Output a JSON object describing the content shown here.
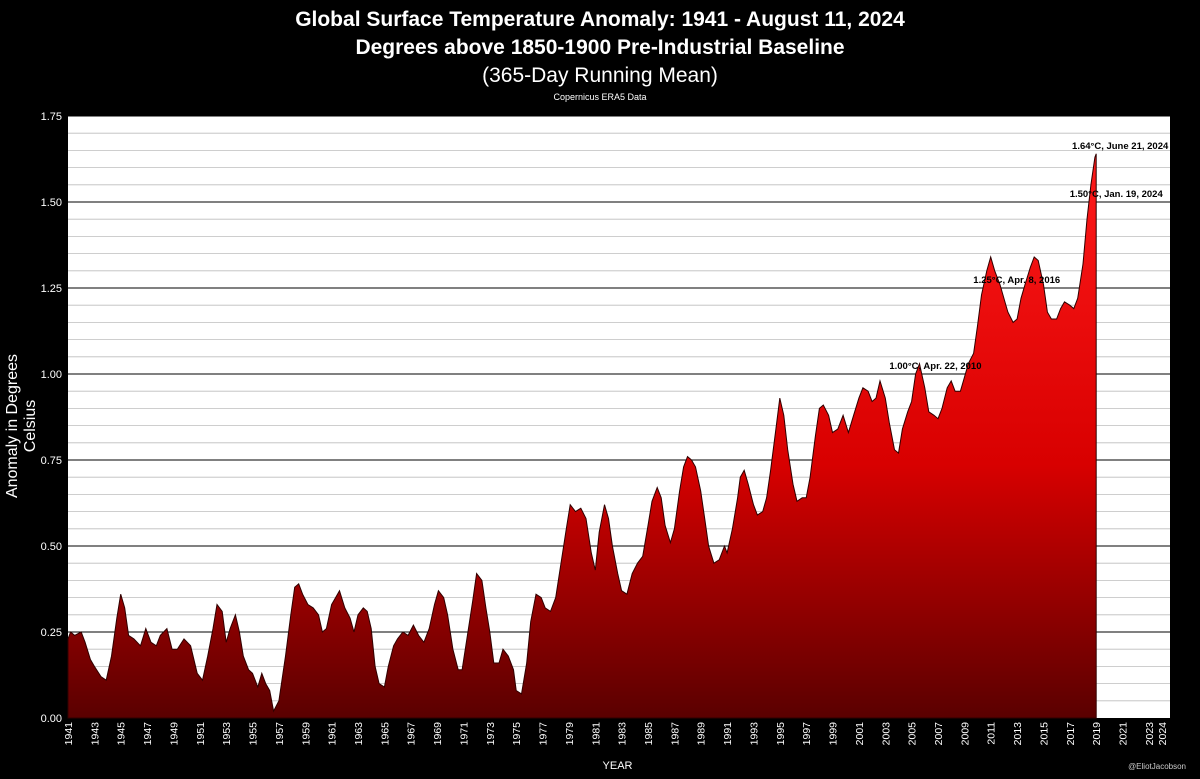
{
  "chart_data": {
    "type": "area",
    "title": "Global Surface Temperature Anomaly: 1941 - August 11, 2024",
    "subtitle": "Degrees above 1850-1900 Pre-Industrial Baseline",
    "subtitle2": "(365-Day Running Mean)",
    "source": "Copernicus ERA5 Data",
    "xlabel": "YEAR",
    "ylabel": "Anomaly in Degrees Celsius",
    "credit": "@EliotJacobson",
    "xlim": [
      1941,
      2024.6
    ],
    "ylim": [
      0,
      1.75
    ],
    "yticks": [
      "0.00",
      "0.25",
      "0.50",
      "0.75",
      "1.00",
      "1.25",
      "1.50",
      "1.75"
    ],
    "xticks": [
      "1941",
      "1943",
      "1945",
      "1947",
      "1949",
      "1951",
      "1953",
      "1955",
      "1957",
      "1959",
      "1961",
      "1963",
      "1965",
      "1967",
      "1969",
      "1971",
      "1973",
      "1975",
      "1977",
      "1979",
      "1981",
      "1983",
      "1985",
      "1987",
      "1989",
      "1991",
      "1993",
      "1995",
      "1997",
      "1999",
      "2001",
      "2003",
      "2005",
      "2007",
      "2009",
      "2011",
      "2013",
      "2015",
      "2017",
      "2019",
      "2021",
      "2023",
      "2024"
    ],
    "grid": true,
    "fill_color": "#e00000",
    "points": [
      [
        1941.0,
        0.23
      ],
      [
        1941.2,
        0.25
      ],
      [
        1941.5,
        0.24
      ],
      [
        1942.0,
        0.25
      ],
      [
        1942.3,
        0.22
      ],
      [
        1942.7,
        0.17
      ],
      [
        1943.0,
        0.15
      ],
      [
        1943.5,
        0.12
      ],
      [
        1943.9,
        0.11
      ],
      [
        1944.3,
        0.18
      ],
      [
        1944.7,
        0.29
      ],
      [
        1945.0,
        0.36
      ],
      [
        1945.3,
        0.32
      ],
      [
        1945.6,
        0.24
      ],
      [
        1946.0,
        0.23
      ],
      [
        1946.5,
        0.21
      ],
      [
        1946.9,
        0.26
      ],
      [
        1947.3,
        0.22
      ],
      [
        1947.7,
        0.21
      ],
      [
        1948.0,
        0.24
      ],
      [
        1948.5,
        0.26
      ],
      [
        1948.9,
        0.2
      ],
      [
        1949.3,
        0.2
      ],
      [
        1949.8,
        0.23
      ],
      [
        1950.3,
        0.21
      ],
      [
        1950.8,
        0.13
      ],
      [
        1951.2,
        0.11
      ],
      [
        1951.6,
        0.18
      ],
      [
        1952.0,
        0.26
      ],
      [
        1952.3,
        0.33
      ],
      [
        1952.7,
        0.31
      ],
      [
        1953.0,
        0.22
      ],
      [
        1953.3,
        0.26
      ],
      [
        1953.7,
        0.3
      ],
      [
        1954.0,
        0.25
      ],
      [
        1954.3,
        0.18
      ],
      [
        1954.7,
        0.14
      ],
      [
        1955.0,
        0.13
      ],
      [
        1955.4,
        0.09
      ],
      [
        1955.7,
        0.13
      ],
      [
        1956.0,
        0.1
      ],
      [
        1956.3,
        0.08
      ],
      [
        1956.6,
        0.02
      ],
      [
        1957.0,
        0.05
      ],
      [
        1957.5,
        0.18
      ],
      [
        1957.9,
        0.3
      ],
      [
        1958.2,
        0.38
      ],
      [
        1958.5,
        0.39
      ],
      [
        1958.8,
        0.36
      ],
      [
        1959.2,
        0.33
      ],
      [
        1959.6,
        0.32
      ],
      [
        1960.0,
        0.3
      ],
      [
        1960.3,
        0.25
      ],
      [
        1960.6,
        0.26
      ],
      [
        1961.0,
        0.33
      ],
      [
        1961.3,
        0.35
      ],
      [
        1961.6,
        0.37
      ],
      [
        1962.0,
        0.32
      ],
      [
        1962.4,
        0.29
      ],
      [
        1962.7,
        0.25
      ],
      [
        1963.0,
        0.3
      ],
      [
        1963.4,
        0.32
      ],
      [
        1963.7,
        0.31
      ],
      [
        1964.0,
        0.26
      ],
      [
        1964.3,
        0.15
      ],
      [
        1964.6,
        0.1
      ],
      [
        1965.0,
        0.09
      ],
      [
        1965.3,
        0.15
      ],
      [
        1965.7,
        0.21
      ],
      [
        1966.0,
        0.23
      ],
      [
        1966.4,
        0.25
      ],
      [
        1966.8,
        0.24
      ],
      [
        1967.2,
        0.27
      ],
      [
        1967.6,
        0.24
      ],
      [
        1968.0,
        0.22
      ],
      [
        1968.4,
        0.26
      ],
      [
        1968.8,
        0.33
      ],
      [
        1969.1,
        0.37
      ],
      [
        1969.5,
        0.35
      ],
      [
        1969.8,
        0.3
      ],
      [
        1970.2,
        0.2
      ],
      [
        1970.6,
        0.14
      ],
      [
        1970.9,
        0.14
      ],
      [
        1971.3,
        0.24
      ],
      [
        1971.7,
        0.34
      ],
      [
        1972.0,
        0.42
      ],
      [
        1972.4,
        0.4
      ],
      [
        1972.7,
        0.32
      ],
      [
        1973.0,
        0.25
      ],
      [
        1973.3,
        0.16
      ],
      [
        1973.7,
        0.16
      ],
      [
        1974.0,
        0.2
      ],
      [
        1974.4,
        0.18
      ],
      [
        1974.8,
        0.14
      ],
      [
        1975.0,
        0.08
      ],
      [
        1975.4,
        0.07
      ],
      [
        1975.8,
        0.16
      ],
      [
        1976.1,
        0.28
      ],
      [
        1976.5,
        0.36
      ],
      [
        1976.9,
        0.35
      ],
      [
        1977.2,
        0.32
      ],
      [
        1977.6,
        0.31
      ],
      [
        1978.0,
        0.35
      ],
      [
        1978.4,
        0.45
      ],
      [
        1978.8,
        0.55
      ],
      [
        1979.1,
        0.62
      ],
      [
        1979.5,
        0.6
      ],
      [
        1979.9,
        0.61
      ],
      [
        1980.3,
        0.58
      ],
      [
        1980.7,
        0.48
      ],
      [
        1981.0,
        0.43
      ],
      [
        1981.3,
        0.54
      ],
      [
        1981.7,
        0.62
      ],
      [
        1982.0,
        0.58
      ],
      [
        1982.3,
        0.5
      ],
      [
        1982.7,
        0.42
      ],
      [
        1983.0,
        0.37
      ],
      [
        1983.4,
        0.36
      ],
      [
        1983.8,
        0.42
      ],
      [
        1984.2,
        0.45
      ],
      [
        1984.6,
        0.47
      ],
      [
        1985.0,
        0.56
      ],
      [
        1985.3,
        0.63
      ],
      [
        1985.7,
        0.67
      ],
      [
        1986.0,
        0.64
      ],
      [
        1986.3,
        0.56
      ],
      [
        1986.7,
        0.51
      ],
      [
        1987.0,
        0.55
      ],
      [
        1987.4,
        0.66
      ],
      [
        1987.7,
        0.73
      ],
      [
        1988.0,
        0.76
      ],
      [
        1988.3,
        0.75
      ],
      [
        1988.6,
        0.73
      ],
      [
        1989.0,
        0.66
      ],
      [
        1989.3,
        0.58
      ],
      [
        1989.6,
        0.5
      ],
      [
        1990.0,
        0.45
      ],
      [
        1990.4,
        0.46
      ],
      [
        1990.8,
        0.5
      ],
      [
        1991.0,
        0.48
      ],
      [
        1991.4,
        0.55
      ],
      [
        1991.8,
        0.64
      ],
      [
        1992.0,
        0.7
      ],
      [
        1992.3,
        0.72
      ],
      [
        1992.6,
        0.68
      ],
      [
        1993.0,
        0.62
      ],
      [
        1993.3,
        0.59
      ],
      [
        1993.7,
        0.6
      ],
      [
        1994.0,
        0.64
      ],
      [
        1994.3,
        0.72
      ],
      [
        1994.7,
        0.84
      ],
      [
        1995.0,
        0.93
      ],
      [
        1995.3,
        0.88
      ],
      [
        1995.6,
        0.78
      ],
      [
        1996.0,
        0.68
      ],
      [
        1996.3,
        0.63
      ],
      [
        1996.7,
        0.64
      ],
      [
        1997.0,
        0.64
      ],
      [
        1997.3,
        0.7
      ],
      [
        1997.7,
        0.82
      ],
      [
        1998.0,
        0.9
      ],
      [
        1998.3,
        0.91
      ],
      [
        1998.7,
        0.88
      ],
      [
        1999.0,
        0.83
      ],
      [
        1999.4,
        0.84
      ],
      [
        1999.8,
        0.88
      ],
      [
        2000.2,
        0.83
      ],
      [
        2000.6,
        0.88
      ],
      [
        2001.0,
        0.93
      ],
      [
        2001.3,
        0.96
      ],
      [
        2001.7,
        0.95
      ],
      [
        2002.0,
        0.92
      ],
      [
        2002.3,
        0.93
      ],
      [
        2002.6,
        0.98
      ],
      [
        2003.0,
        0.93
      ],
      [
        2003.3,
        0.86
      ],
      [
        2003.7,
        0.78
      ],
      [
        2004.0,
        0.77
      ],
      [
        2004.3,
        0.84
      ],
      [
        2004.7,
        0.89
      ],
      [
        2005.0,
        0.92
      ],
      [
        2005.3,
        1.0
      ],
      [
        2005.6,
        1.03
      ],
      [
        2006.0,
        0.96
      ],
      [
        2006.3,
        0.89
      ],
      [
        2006.7,
        0.88
      ],
      [
        2007.0,
        0.87
      ],
      [
        2007.3,
        0.9
      ],
      [
        2007.7,
        0.96
      ],
      [
        2008.0,
        0.98
      ],
      [
        2008.3,
        0.95
      ],
      [
        2008.7,
        0.95
      ],
      [
        2009.0,
        0.99
      ],
      [
        2009.3,
        1.03
      ],
      [
        2009.7,
        1.06
      ],
      [
        2010.0,
        1.14
      ],
      [
        2010.3,
        1.23
      ],
      [
        2010.7,
        1.3
      ],
      [
        2011.0,
        1.34
      ],
      [
        2011.3,
        1.3
      ],
      [
        2011.7,
        1.26
      ],
      [
        2012.0,
        1.22
      ],
      [
        2012.3,
        1.18
      ],
      [
        2012.7,
        1.15
      ],
      [
        2013.0,
        1.16
      ],
      [
        2013.3,
        1.22
      ],
      [
        2013.6,
        1.26
      ],
      [
        2014.0,
        1.31
      ],
      [
        2014.3,
        1.34
      ],
      [
        2014.6,
        1.33
      ],
      [
        2015.0,
        1.26
      ],
      [
        2015.3,
        1.18
      ],
      [
        2015.6,
        1.16
      ],
      [
        2016.0,
        1.16
      ],
      [
        2016.3,
        1.19
      ],
      [
        2016.6,
        1.21
      ],
      [
        2017.0,
        1.2
      ],
      [
        2017.3,
        1.19
      ],
      [
        2017.6,
        1.22
      ],
      [
        2018.0,
        1.32
      ],
      [
        2018.3,
        1.45
      ],
      [
        2018.6,
        1.55
      ],
      [
        2018.9,
        1.63
      ],
      [
        2019.0,
        1.64
      ]
    ],
    "annotations": [
      {
        "text": "1.00°C, Apr. 22, 2010",
        "x": 2010.3,
        "y": 1.0
      },
      {
        "text": "1.25°C, Apr. 8, 2016",
        "x": 2016.27,
        "y": 1.25
      },
      {
        "text": "1.50°C, Jan. 19, 2024",
        "x": 2024.05,
        "y": 1.5
      },
      {
        "text": "1.64°C, June 21, 2024",
        "x": 2024.47,
        "y": 1.64
      }
    ]
  }
}
